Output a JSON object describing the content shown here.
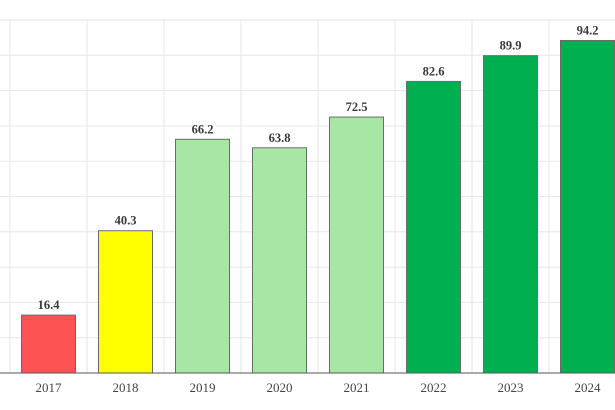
{
  "chart_data": {
    "type": "bar",
    "categories": [
      "2017",
      "2018",
      "2019",
      "2020",
      "2021",
      "2022",
      "2023",
      "2024"
    ],
    "values": [
      16.4,
      40.3,
      66.2,
      63.8,
      72.5,
      82.6,
      89.9,
      94.2
    ],
    "data_labels": [
      "16.4",
      "40.3",
      "66.2",
      "63.8",
      "72.5",
      "82.6",
      "89.9",
      "94.2"
    ],
    "colors": [
      "#ff5252",
      "#ffff00",
      "#a8e6a3",
      "#a8e6a3",
      "#a8e6a3",
      "#00b050",
      "#00b050",
      "#00b050"
    ],
    "ylim": [
      0,
      100
    ],
    "grid": true
  }
}
